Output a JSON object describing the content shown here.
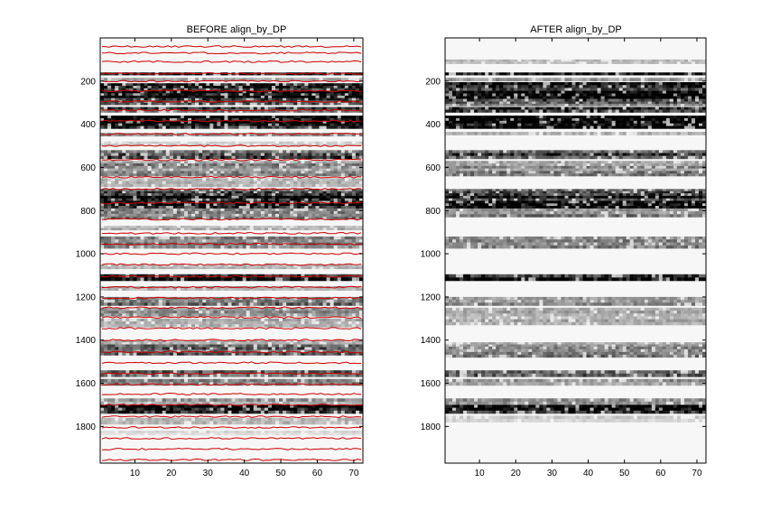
{
  "chart_data": [
    {
      "type": "heatmap",
      "title": "BEFORE  align_by_DP",
      "xlabel": "",
      "ylabel": "",
      "xlim": [
        0.5,
        72.5
      ],
      "ylim": [
        1970,
        0
      ],
      "y_reversed": true,
      "xticks": [
        10,
        20,
        30,
        40,
        50,
        60,
        70
      ],
      "yticks": [
        200,
        400,
        600,
        800,
        1000,
        1200,
        1400,
        1600,
        1800
      ],
      "colormap": "gray (dark = high)",
      "overlay_color": "#cc0000",
      "overlay_lines_y": [
        40,
        70,
        110,
        165,
        200,
        245,
        295,
        335,
        385,
        445,
        500,
        565,
        645,
        700,
        765,
        840,
        905,
        955,
        1000,
        1050,
        1105,
        1155,
        1205,
        1250,
        1295,
        1345,
        1400,
        1455,
        1505,
        1555,
        1605,
        1650,
        1700,
        1755,
        1805,
        1855,
        1905,
        1955
      ],
      "bands": [
        {
          "y_start": 160,
          "y_end": 172,
          "intensity": 0.85
        },
        {
          "y_start": 185,
          "y_end": 200,
          "intensity": 0.3
        },
        {
          "y_start": 210,
          "y_end": 245,
          "intensity": 0.8
        },
        {
          "y_start": 245,
          "y_end": 290,
          "intensity": 0.95
        },
        {
          "y_start": 290,
          "y_end": 310,
          "intensity": 0.6
        },
        {
          "y_start": 320,
          "y_end": 345,
          "intensity": 0.7
        },
        {
          "y_start": 360,
          "y_end": 420,
          "intensity": 0.95
        },
        {
          "y_start": 440,
          "y_end": 455,
          "intensity": 0.35
        },
        {
          "y_start": 480,
          "y_end": 500,
          "intensity": 0.25
        },
        {
          "y_start": 520,
          "y_end": 560,
          "intensity": 0.7
        },
        {
          "y_start": 570,
          "y_end": 640,
          "intensity": 0.45
        },
        {
          "y_start": 650,
          "y_end": 690,
          "intensity": 0.35
        },
        {
          "y_start": 700,
          "y_end": 720,
          "intensity": 0.7
        },
        {
          "y_start": 720,
          "y_end": 790,
          "intensity": 0.9
        },
        {
          "y_start": 790,
          "y_end": 840,
          "intensity": 0.55
        },
        {
          "y_start": 870,
          "y_end": 890,
          "intensity": 0.3
        },
        {
          "y_start": 920,
          "y_end": 975,
          "intensity": 0.55
        },
        {
          "y_start": 1050,
          "y_end": 1070,
          "intensity": 0.3
        },
        {
          "y_start": 1095,
          "y_end": 1125,
          "intensity": 0.85
        },
        {
          "y_start": 1150,
          "y_end": 1170,
          "intensity": 0.35
        },
        {
          "y_start": 1200,
          "y_end": 1240,
          "intensity": 0.5
        },
        {
          "y_start": 1250,
          "y_end": 1290,
          "intensity": 0.4
        },
        {
          "y_start": 1300,
          "y_end": 1340,
          "intensity": 0.35
        },
        {
          "y_start": 1400,
          "y_end": 1420,
          "intensity": 0.3
        },
        {
          "y_start": 1420,
          "y_end": 1470,
          "intensity": 0.55
        },
        {
          "y_start": 1540,
          "y_end": 1570,
          "intensity": 0.6
        },
        {
          "y_start": 1580,
          "y_end": 1610,
          "intensity": 0.45
        },
        {
          "y_start": 1670,
          "y_end": 1700,
          "intensity": 0.4
        },
        {
          "y_start": 1700,
          "y_end": 1740,
          "intensity": 0.98
        },
        {
          "y_start": 1760,
          "y_end": 1790,
          "intensity": 0.25
        },
        {
          "y_start": 1820,
          "y_end": 1840,
          "intensity": 0.15
        }
      ]
    },
    {
      "type": "heatmap",
      "title": "AFTER  align_by_DP",
      "xlabel": "",
      "ylabel": "",
      "xlim": [
        0.5,
        72.5
      ],
      "ylim": [
        1970,
        0
      ],
      "y_reversed": true,
      "xticks": [
        10,
        20,
        30,
        40,
        50,
        60,
        70
      ],
      "yticks": [
        200,
        400,
        600,
        800,
        1000,
        1200,
        1400,
        1600,
        1800
      ],
      "colormap": "gray (dark = high)",
      "bands": [
        {
          "y_start": 100,
          "y_end": 120,
          "intensity": 0.25
        },
        {
          "y_start": 160,
          "y_end": 172,
          "intensity": 0.85
        },
        {
          "y_start": 185,
          "y_end": 200,
          "intensity": 0.35
        },
        {
          "y_start": 205,
          "y_end": 245,
          "intensity": 0.85
        },
        {
          "y_start": 245,
          "y_end": 295,
          "intensity": 0.97
        },
        {
          "y_start": 295,
          "y_end": 315,
          "intensity": 0.55
        },
        {
          "y_start": 320,
          "y_end": 345,
          "intensity": 0.75
        },
        {
          "y_start": 360,
          "y_end": 420,
          "intensity": 0.95
        },
        {
          "y_start": 435,
          "y_end": 450,
          "intensity": 0.4
        },
        {
          "y_start": 520,
          "y_end": 560,
          "intensity": 0.75
        },
        {
          "y_start": 570,
          "y_end": 640,
          "intensity": 0.45
        },
        {
          "y_start": 700,
          "y_end": 720,
          "intensity": 0.75
        },
        {
          "y_start": 720,
          "y_end": 790,
          "intensity": 0.92
        },
        {
          "y_start": 790,
          "y_end": 830,
          "intensity": 0.5
        },
        {
          "y_start": 920,
          "y_end": 975,
          "intensity": 0.5
        },
        {
          "y_start": 1095,
          "y_end": 1125,
          "intensity": 0.85
        },
        {
          "y_start": 1200,
          "y_end": 1240,
          "intensity": 0.45
        },
        {
          "y_start": 1250,
          "y_end": 1330,
          "intensity": 0.35
        },
        {
          "y_start": 1410,
          "y_end": 1430,
          "intensity": 0.35
        },
        {
          "y_start": 1430,
          "y_end": 1480,
          "intensity": 0.5
        },
        {
          "y_start": 1540,
          "y_end": 1570,
          "intensity": 0.6
        },
        {
          "y_start": 1580,
          "y_end": 1610,
          "intensity": 0.45
        },
        {
          "y_start": 1670,
          "y_end": 1700,
          "intensity": 0.45
        },
        {
          "y_start": 1700,
          "y_end": 1740,
          "intensity": 0.98
        },
        {
          "y_start": 1750,
          "y_end": 1780,
          "intensity": 0.2
        }
      ]
    }
  ]
}
